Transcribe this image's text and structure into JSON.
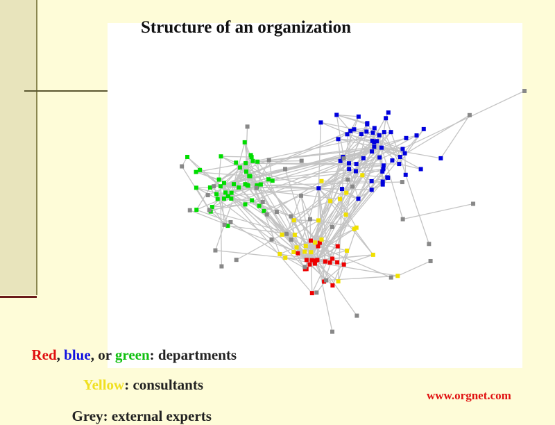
{
  "title": "Structure of an organization",
  "legend": {
    "lines": [
      {
        "parts": [
          "Red",
          ", ",
          "blue",
          ", or ",
          "green",
          ": departments"
        ]
      },
      {
        "parts": [
          "Yellow",
          ": consultants"
        ]
      },
      {
        "parts": [
          "Grey: external experts"
        ]
      }
    ]
  },
  "footer": {
    "url": "www.orgnet.com"
  }
}
